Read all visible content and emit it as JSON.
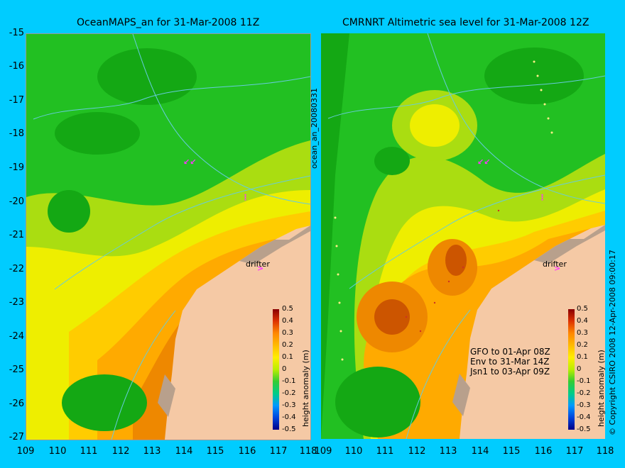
{
  "left": {
    "title": "OceanMAPS_an for 31-Mar-2008 11Z",
    "side_label": "ocean_an_20080331",
    "colorbar_label": "height anomaly (m)",
    "drifter_label": "drifter"
  },
  "right": {
    "title": "CMRNRT Altimetric sea level  for 31-Mar-2008 12Z",
    "colorbar_label": "height anomaly (m)",
    "drifter_label": "drifter",
    "legend": [
      "GFO to 01-Apr 08Z",
      "Env to 31-Mar 14Z",
      "Jsn1 to 03-Apr 09Z"
    ]
  },
  "copyright": "© Copyright CSIRO 2008   12-Apr-2008 09:00:17",
  "y_ticks": [
    "-15",
    "-16",
    "-17",
    "-18",
    "-19",
    "-20",
    "-21",
    "-22",
    "-23",
    "-24",
    "-25",
    "-26",
    "-27"
  ],
  "x_ticks": [
    "109",
    "110",
    "111",
    "112",
    "113",
    "114",
    "115",
    "116",
    "117",
    "118"
  ],
  "colorbar_ticks": [
    "0.5",
    "0.4",
    "0.3",
    "0.2",
    "0.1",
    "0",
    "-0.1",
    "-0.2",
    "-0.3",
    "-0.4",
    "-0.5"
  ],
  "colors": {
    "background": "#00ccff",
    "land": "#f5c9a5",
    "coast_rock": "#b8a08c",
    "bathymetry": "#66ccdd",
    "drifter": "#ff33ff"
  },
  "chart_data": {
    "type": "heatmap",
    "xlim": [
      109,
      118
    ],
    "ylim": [
      -27,
      -15
    ],
    "xlabel": "",
    "ylabel": "",
    "colorbar_range": [
      -0.5,
      0.5
    ],
    "colorbar_label": "height anomaly (m)",
    "panels": [
      "OceanMAPS_an for 31-Mar-2008 11Z",
      "CMRNRT Altimetric sea level  for 31-Mar-2008 12Z"
    ]
  }
}
